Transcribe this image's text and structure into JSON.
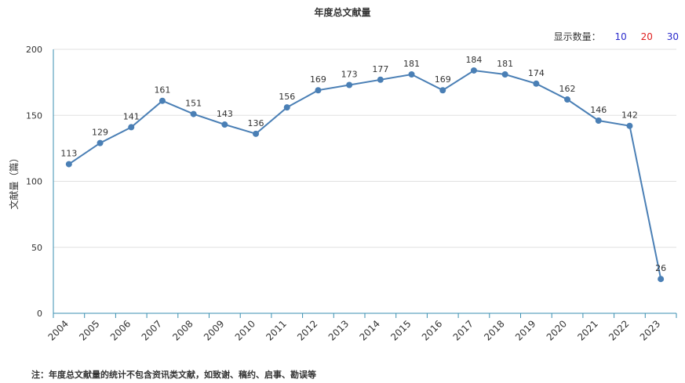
{
  "chart_data": {
    "type": "line",
    "title": "年度总文献量",
    "ylabel": "文献量（篇）",
    "xlabel": "",
    "ylim": [
      0,
      200
    ],
    "yticks": [
      0,
      50,
      100,
      150,
      200
    ],
    "grid": true,
    "x": [
      "2004",
      "2005",
      "2006",
      "2007",
      "2008",
      "2009",
      "2010",
      "2011",
      "2012",
      "2013",
      "2014",
      "2015",
      "2016",
      "2017",
      "2018",
      "2019",
      "2020",
      "2021",
      "2022",
      "2023"
    ],
    "series": [
      {
        "values": [
          113,
          129,
          141,
          161,
          151,
          143,
          136,
          156,
          169,
          173,
          177,
          181,
          169,
          184,
          181,
          174,
          162,
          146,
          142,
          26
        ]
      }
    ],
    "line_color": "#4a7fb5",
    "note": "注：年度总文献量的统计不包含资讯类文献，如致谢、稿约、启事、勘误等"
  },
  "display_options": {
    "label": "显示数量：",
    "options": [
      {
        "text": "10",
        "color": "#2b2bcc"
      },
      {
        "text": "20",
        "color": "#e02020"
      },
      {
        "text": "30",
        "color": "#2b2bcc"
      }
    ]
  }
}
